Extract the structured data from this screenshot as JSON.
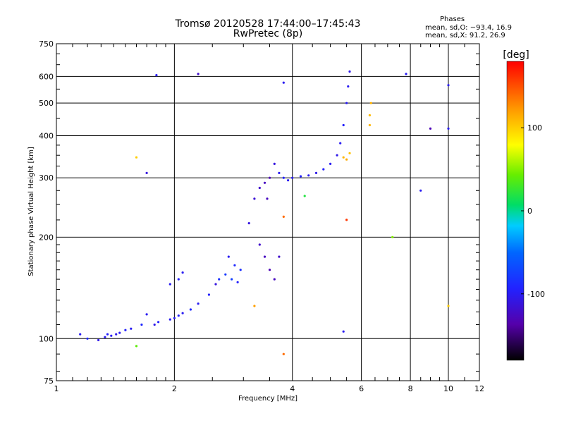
{
  "header": {
    "title": "Tromsø 20120528 17:44:00–17:45:43",
    "subtitle": "RwPretec (8p)",
    "phases_title": "Phases",
    "phases_line1": "mean, sd,O: −93.4, 16.9",
    "phases_line2": "mean, sd,X: 91.2, 26.9"
  },
  "chart_data": {
    "type": "scatter",
    "xlabel": "Frequency [MHz]",
    "ylabel": "Stationary phase Virtual Height [km]",
    "x_scale": "log",
    "y_scale": "log",
    "xlim": [
      1,
      12
    ],
    "ylim": [
      75,
      750
    ],
    "x_ticks": [
      1,
      2,
      4,
      6,
      8,
      10,
      12
    ],
    "y_ticks": [
      75,
      100,
      200,
      300,
      400,
      500,
      600,
      750
    ],
    "grid": true,
    "colorbar": {
      "label": "[deg]",
      "range": [
        -180,
        180
      ],
      "ticks": [
        100,
        0,
        -100
      ]
    },
    "series": [
      {
        "points": [
          [
            1.15,
            103,
            -100
          ],
          [
            1.2,
            100,
            -90
          ],
          [
            1.28,
            99,
            -105
          ],
          [
            1.33,
            101,
            -100
          ],
          [
            1.35,
            103,
            -95
          ],
          [
            1.38,
            102,
            -100
          ],
          [
            1.42,
            103,
            -105
          ],
          [
            1.45,
            104,
            -100
          ],
          [
            1.5,
            106,
            -95
          ],
          [
            1.55,
            107,
            -100
          ],
          [
            1.65,
            110,
            -90
          ],
          [
            1.7,
            118,
            -100
          ],
          [
            1.78,
            110,
            -105
          ],
          [
            1.82,
            112,
            -95
          ],
          [
            1.95,
            114,
            -100
          ],
          [
            2.0,
            115,
            -100
          ],
          [
            2.05,
            117,
            -95
          ],
          [
            2.1,
            119,
            -100
          ],
          [
            2.2,
            122,
            -90
          ],
          [
            2.3,
            127,
            -100
          ],
          [
            2.45,
            135,
            -95
          ],
          [
            2.55,
            145,
            -110
          ],
          [
            2.6,
            150,
            -85
          ],
          [
            2.7,
            155,
            -80
          ],
          [
            2.8,
            150,
            -75
          ],
          [
            2.9,
            147,
            -95
          ],
          [
            2.75,
            175,
            -100
          ],
          [
            2.85,
            165,
            -90
          ],
          [
            2.95,
            160,
            -85
          ],
          [
            1.95,
            145,
            -100
          ],
          [
            2.05,
            150,
            -95
          ],
          [
            2.1,
            157,
            -100
          ],
          [
            3.1,
            220,
            -110
          ],
          [
            3.2,
            260,
            -115
          ],
          [
            3.3,
            280,
            -120
          ],
          [
            3.4,
            290,
            -125
          ],
          [
            3.5,
            300,
            -130
          ],
          [
            3.45,
            260,
            -125
          ],
          [
            3.6,
            330,
            -110
          ],
          [
            3.7,
            310,
            -100
          ],
          [
            3.8,
            300,
            -95
          ],
          [
            3.9,
            295,
            -100
          ],
          [
            3.3,
            190,
            -120
          ],
          [
            3.4,
            175,
            -125
          ],
          [
            3.5,
            160,
            -130
          ],
          [
            3.6,
            150,
            -125
          ],
          [
            3.7,
            175,
            -120
          ],
          [
            4.0,
            300,
            -100
          ],
          [
            4.2,
            303,
            -95
          ],
          [
            4.4,
            305,
            -100
          ],
          [
            4.6,
            310,
            -105
          ],
          [
            4.8,
            318,
            -95
          ],
          [
            5.0,
            330,
            -100
          ],
          [
            5.2,
            350,
            -105
          ],
          [
            5.3,
            380,
            -100
          ],
          [
            5.4,
            430,
            -95
          ],
          [
            5.5,
            500,
            -100
          ],
          [
            5.55,
            560,
            -100
          ],
          [
            5.6,
            620,
            -105
          ],
          [
            5.4,
            345,
            110
          ],
          [
            5.5,
            340,
            115
          ],
          [
            5.6,
            355,
            105
          ],
          [
            6.3,
            430,
            110
          ],
          [
            6.35,
            500,
            112
          ],
          [
            6.3,
            460,
            108
          ],
          [
            1.8,
            605,
            -100
          ],
          [
            2.3,
            610,
            -120
          ],
          [
            3.8,
            575,
            -100
          ],
          [
            10.0,
            420,
            -100
          ],
          [
            9.0,
            420,
            -130
          ],
          [
            7.8,
            610,
            -100
          ],
          [
            10.0,
            565,
            -100
          ],
          [
            1.6,
            345,
            100
          ],
          [
            1.7,
            310,
            -110
          ],
          [
            3.8,
            230,
            140
          ],
          [
            4.3,
            265,
            20
          ],
          [
            5.5,
            225,
            160
          ],
          [
            5.4,
            105,
            -100
          ],
          [
            7.2,
            200,
            50
          ],
          [
            8.5,
            275,
            -100
          ],
          [
            1.6,
            95,
            40
          ],
          [
            3.8,
            90,
            140
          ],
          [
            10.0,
            125,
            100
          ],
          [
            3.2,
            125,
            120
          ]
        ]
      }
    ]
  }
}
